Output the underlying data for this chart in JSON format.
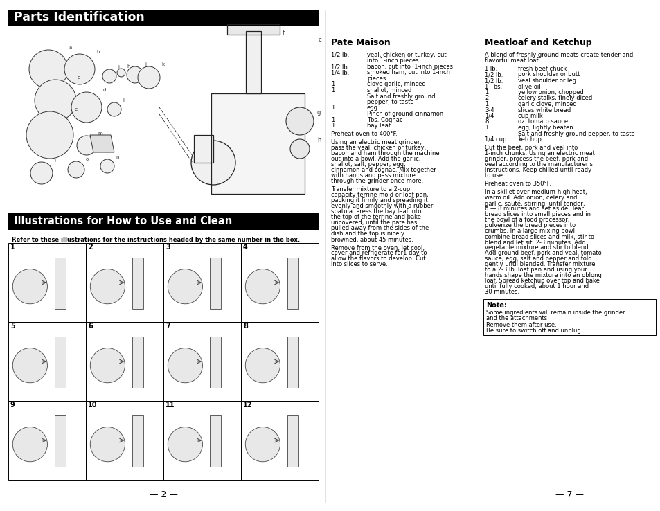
{
  "page_bg": "#ffffff",
  "header1_text": "Parts Identification",
  "header1_bg": "#000000",
  "header1_color": "#ffffff",
  "header2_text": "Illustrations for How to Use and Clean",
  "header2_bg": "#000000",
  "header2_color": "#ffffff",
  "illus_caption": "Refer to these illustrations for the instructions headed by the same number in the box.",
  "page_num_left": "— 2 —",
  "page_num_right": "— 7 —",
  "pate_title": "Pate Maison",
  "pate_ingredients": [
    [
      "1/2 lb.",
      "veal, chicken or turkey, cut into 1-inch pieces"
    ],
    [
      "1/2 lb.",
      "bacon, cut into  1-inch pieces"
    ],
    [
      "1/4 lb.",
      "smoked ham, cut into 1-inch pieces"
    ],
    [
      "1",
      "clove garlic, minced"
    ],
    [
      "1",
      "shallot, minced"
    ],
    [
      "",
      "Salt and freshly ground pepper, to taste"
    ],
    [
      "1",
      "egg"
    ],
    [
      "",
      "Pinch of ground cinnamon"
    ],
    [
      "1",
      "Tbs. Cognac"
    ],
    [
      "1",
      "bay leaf"
    ]
  ],
  "pate_para1": "Preheat oven to 400°F.",
  "pate_para2": "Using an electric meat grinder, pass the veal, chicken or turkey, bacon and ham through the machine out into a bowl. Add the garlic, shallot, salt, pepper, egg, cinnamon and cognac. Mix together with hands and pass mixture through the grinder once more.",
  "pate_para3": "Transfer mixture to a 2-cup capacity terrine mold or loaf pan, packing it firmly and spreading it evenly and smoothly with a rubber spatula. Press the bay leaf into the top of the terrine and bake, uncovered, until the pate has pulled away from the sides of the dish and the top is nicely browned, about 45 minutes.",
  "pate_para4": "Remove from the oven, let cool, cover and refrigerate for1 day to allow the flavors to develop. Cut into slices to serve.",
  "meatloaf_title": "Meatloaf and Ketchup",
  "meatloaf_intro": "A blend of freshly ground meats create tender and\nflavorful meat loaf.",
  "meatloaf_ingredients": [
    [
      "1 lb.",
      "fresh beef chuck"
    ],
    [
      "1/2 lb.",
      "pork shoulder or butt"
    ],
    [
      "1/2 lb.",
      "veal shoulder or leg"
    ],
    [
      "1 Tbs.",
      "olive oil"
    ],
    [
      "1",
      "yellow onion, chopped"
    ],
    [
      "2",
      "celery stalks, finely diced"
    ],
    [
      "1",
      "garlic clove, minced"
    ],
    [
      "3-4",
      "slices white bread"
    ],
    [
      "1/4",
      "cup milk"
    ],
    [
      "8",
      "oz. tomato sauce"
    ],
    [
      "1",
      "egg, lightly beaten"
    ],
    [
      "",
      "Salt and freshly ground pepper, to taste"
    ],
    [
      "1/4 cup",
      "ketchup"
    ]
  ],
  "ml_para1": "Cut the beef, pork and veal into 1-inch chunks. Using an electric meat grinder, process the beef, pork and veal according to the manufacturer's instructions. Keep chilled until ready to use.",
  "ml_para2": "Preheat oven to 350°F.",
  "ml_para3": "In a skillet over medium-high heat, warm oil. Add onion, celery and garlic, sauté, stirring, until tender, 6 — 8 minutes and set aside. Tear bread slices into small pieces and in the bowl of a food processor, pulverize the bread pieces into crumbs. In a large mixing bowl, combine bread slices and milk, stir to blend and let sit, 2-3 minutes. Add vegetable mixture and stir to blend. Add ground beef, pork and veal, tomato sauce, egg, salt and pepper and fold gently until blended. Transfer mixture to a 2-3 lb. loaf pan and using your hands shape the mixture into an oblong loaf. Spread ketchup over top and bake until fully cooked, about 1 hour and 30 minutes.",
  "note_title": "Note:",
  "note_lines": [
    "Some ingredients will remain inside the grinder",
    "and the attachments.",
    "Remove them after use.",
    "Be sure to switch off and unplug."
  ],
  "grid_numbers": [
    "1",
    "2",
    "3",
    "4",
    "5",
    "6",
    "7",
    "8",
    "9",
    "10",
    "11",
    "12"
  ]
}
